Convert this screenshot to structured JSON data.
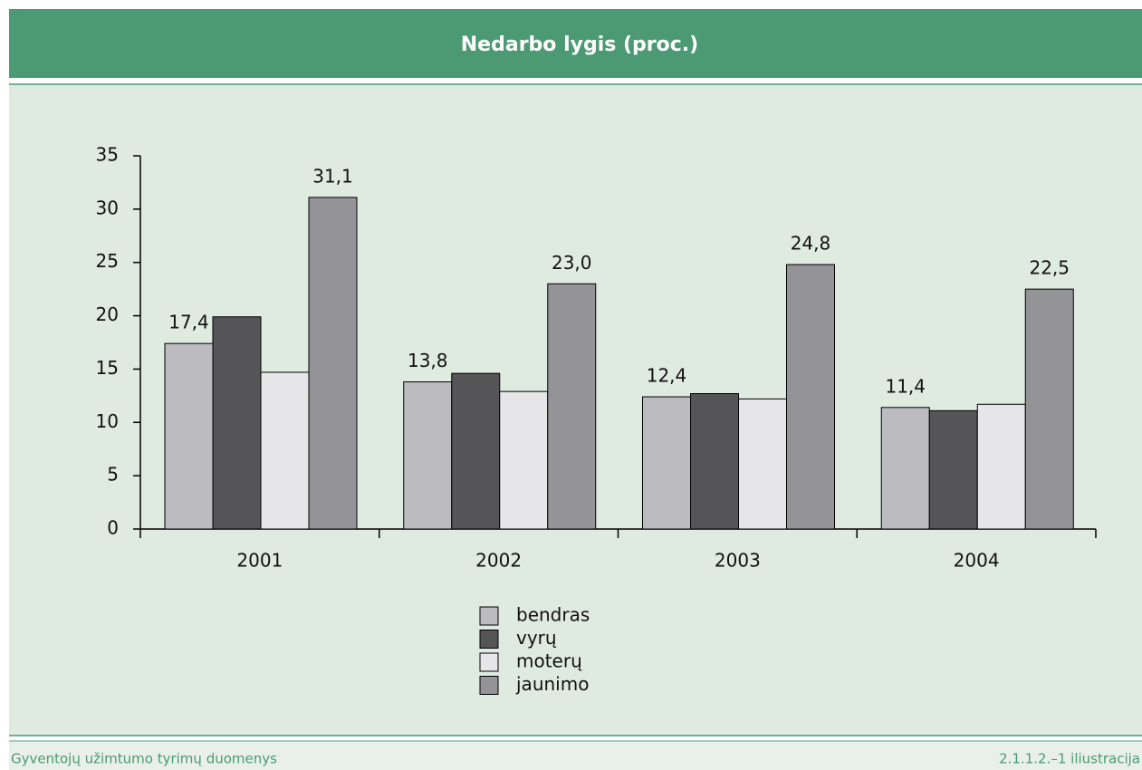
{
  "chart_data": {
    "type": "bar",
    "title": "Nedarbo lygis (proc.)",
    "categories": [
      "2001",
      "2002",
      "2003",
      "2004"
    ],
    "series": [
      {
        "name": "bendras",
        "color": "#bcbcc0",
        "values": [
          17.4,
          13.8,
          12.4,
          11.4
        ],
        "value_labels": [
          "17,4",
          "13,8",
          "12,4",
          "11,4"
        ]
      },
      {
        "name": "vyrų",
        "color": "#555558",
        "values": [
          19.9,
          14.6,
          12.7,
          11.1
        ]
      },
      {
        "name": "moterų",
        "color": "#e6e6e8",
        "values": [
          14.7,
          12.9,
          12.2,
          11.7
        ]
      },
      {
        "name": "jaunimo",
        "color": "#949498",
        "values": [
          31.1,
          23.0,
          24.8,
          22.5
        ],
        "value_labels": [
          "31,1",
          "23,0",
          "24,8",
          "22,5"
        ]
      }
    ],
    "ylim": [
      0,
      35
    ],
    "yticks": [
      0,
      5,
      10,
      15,
      20,
      25,
      30,
      35
    ],
    "source": "Gyventojų užimtumo tyrimų duomenys",
    "note": "2.1.1.2.–1 iliustracija"
  }
}
